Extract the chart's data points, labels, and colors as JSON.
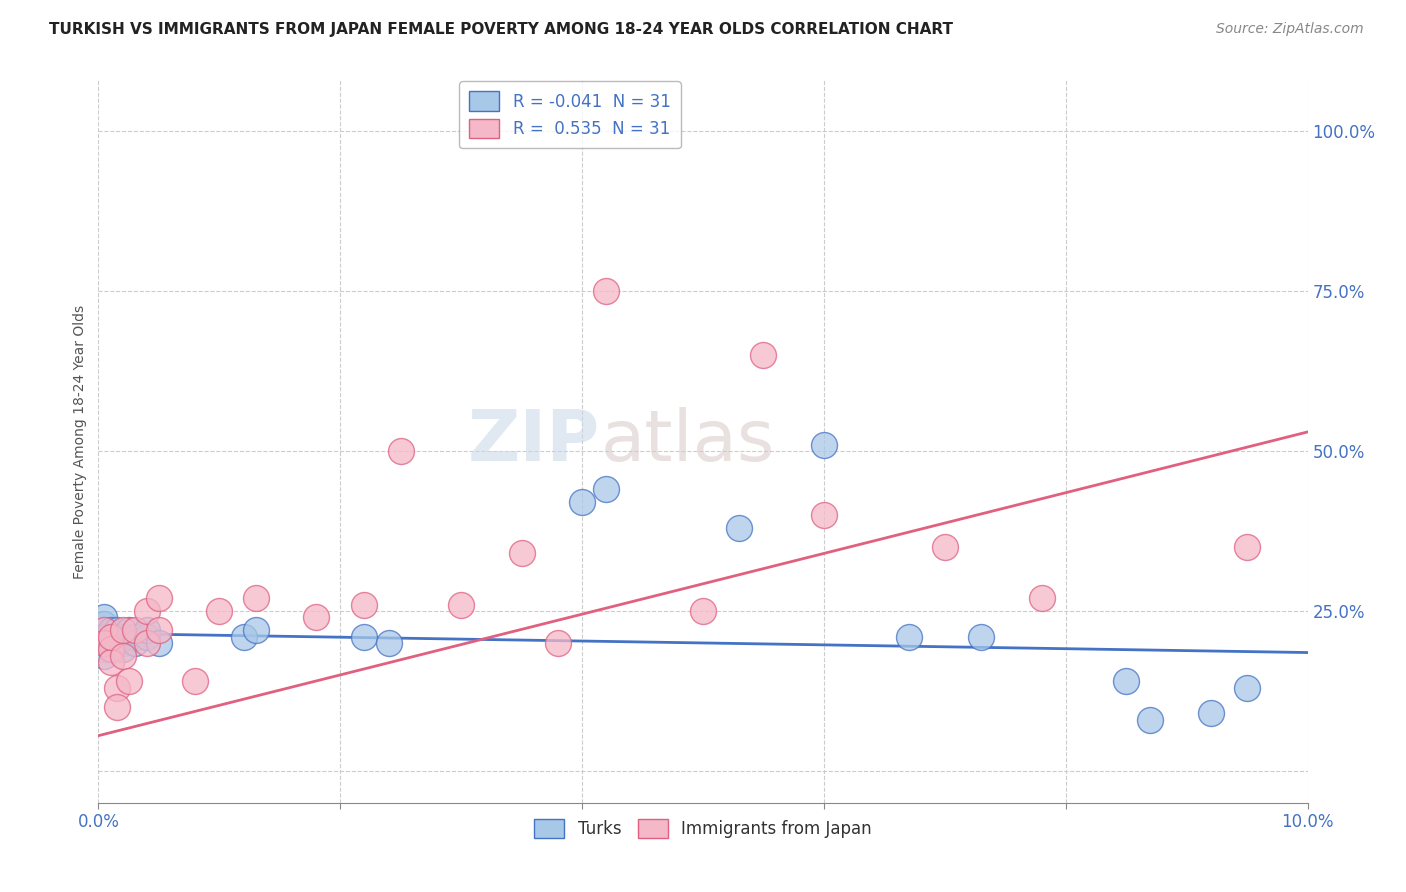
{
  "title": "TURKISH VS IMMIGRANTS FROM JAPAN FEMALE POVERTY AMONG 18-24 YEAR OLDS CORRELATION CHART",
  "source": "Source: ZipAtlas.com",
  "ylabel": "Female Poverty Among 18-24 Year Olds",
  "xlim": [
    0.0,
    0.1
  ],
  "ylim": [
    -0.05,
    1.08
  ],
  "turks_color": "#a8c8e8",
  "japan_color": "#f4b8c8",
  "turks_line_color": "#4472c4",
  "japan_line_color": "#e06080",
  "watermark_zip": "ZIP",
  "watermark_atlas": "atlas",
  "background_color": "#ffffff",
  "grid_color": "#cccccc",
  "turks_x": [
    0.0005,
    0.0005,
    0.0005,
    0.0005,
    0.0005,
    0.0005,
    0.0005,
    0.0005,
    0.001,
    0.001,
    0.001,
    0.001,
    0.001,
    0.0015,
    0.0015,
    0.0015,
    0.002,
    0.002,
    0.002,
    0.0025,
    0.0025,
    0.003,
    0.003,
    0.004,
    0.004,
    0.005,
    0.012,
    0.013,
    0.022,
    0.024,
    0.04,
    0.042,
    0.053,
    0.06,
    0.067,
    0.073,
    0.085,
    0.087,
    0.092,
    0.095
  ],
  "turks_y": [
    0.2,
    0.21,
    0.22,
    0.23,
    0.19,
    0.24,
    0.18,
    0.21,
    0.2,
    0.21,
    0.22,
    0.19,
    0.2,
    0.21,
    0.22,
    0.2,
    0.2,
    0.21,
    0.19,
    0.21,
    0.22,
    0.21,
    0.2,
    0.21,
    0.22,
    0.2,
    0.21,
    0.22,
    0.21,
    0.2,
    0.42,
    0.44,
    0.38,
    0.51,
    0.21,
    0.21,
    0.14,
    0.08,
    0.09,
    0.13
  ],
  "japan_x": [
    0.0005,
    0.0005,
    0.001,
    0.001,
    0.001,
    0.0015,
    0.0015,
    0.002,
    0.002,
    0.0025,
    0.003,
    0.004,
    0.004,
    0.005,
    0.005,
    0.008,
    0.01,
    0.013,
    0.018,
    0.022,
    0.025,
    0.03,
    0.035,
    0.038,
    0.042,
    0.05,
    0.055,
    0.06,
    0.07,
    0.078,
    0.095
  ],
  "japan_y": [
    0.22,
    0.2,
    0.19,
    0.17,
    0.21,
    0.13,
    0.1,
    0.22,
    0.18,
    0.14,
    0.22,
    0.25,
    0.2,
    0.27,
    0.22,
    0.14,
    0.25,
    0.27,
    0.24,
    0.26,
    0.5,
    0.26,
    0.34,
    0.2,
    0.75,
    0.25,
    0.65,
    0.4,
    0.35,
    0.27,
    0.35
  ],
  "turks_line_x": [
    0.0,
    0.1
  ],
  "turks_line_y": [
    0.215,
    0.185
  ],
  "japan_line_x": [
    0.0,
    0.1
  ],
  "japan_line_y": [
    0.055,
    0.53
  ]
}
